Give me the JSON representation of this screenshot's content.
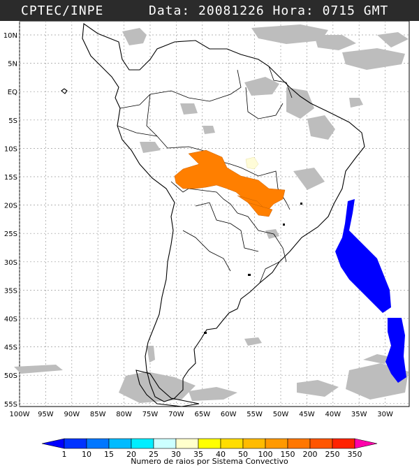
{
  "header": {
    "left_title": "CPTEC/INPE",
    "right_title": "Data: 20081226 Hora: 0715 GMT"
  },
  "map": {
    "latitude_labels": [
      "10N",
      "5N",
      "EQ",
      "5S",
      "10S",
      "15S",
      "20S",
      "25S",
      "30S",
      "35S",
      "40S",
      "45S",
      "50S",
      "55S"
    ],
    "longitude_labels": [
      "100W",
      "95W",
      "90W",
      "85W",
      "80W",
      "75W",
      "70W",
      "65W",
      "60W",
      "55W",
      "50W",
      "45W",
      "40W",
      "35W",
      "30W"
    ],
    "colors": {
      "land_outline": "#000000",
      "cloud_gray": "#bdbdbd",
      "storm_orange": "#ff7f00",
      "storm_light_yellow": "#fffcd8",
      "storm_blue": "#0000ff"
    }
  },
  "legend": {
    "tick_labels": [
      "1",
      "10",
      "15",
      "20",
      "25",
      "30",
      "35",
      "40",
      "50",
      "100",
      "150",
      "200",
      "250",
      "350"
    ],
    "colors": [
      "#0000ff",
      "#0033ff",
      "#0077ff",
      "#00bbff",
      "#00eeff",
      "#ccffff",
      "#ffffcc",
      "#ffff00",
      "#ffdd00",
      "#ffbb00",
      "#ff9900",
      "#ff7700",
      "#ff5500",
      "#ff2200",
      "#ff00aa"
    ],
    "title": "Numero de raios por Sistema Convectivo"
  }
}
